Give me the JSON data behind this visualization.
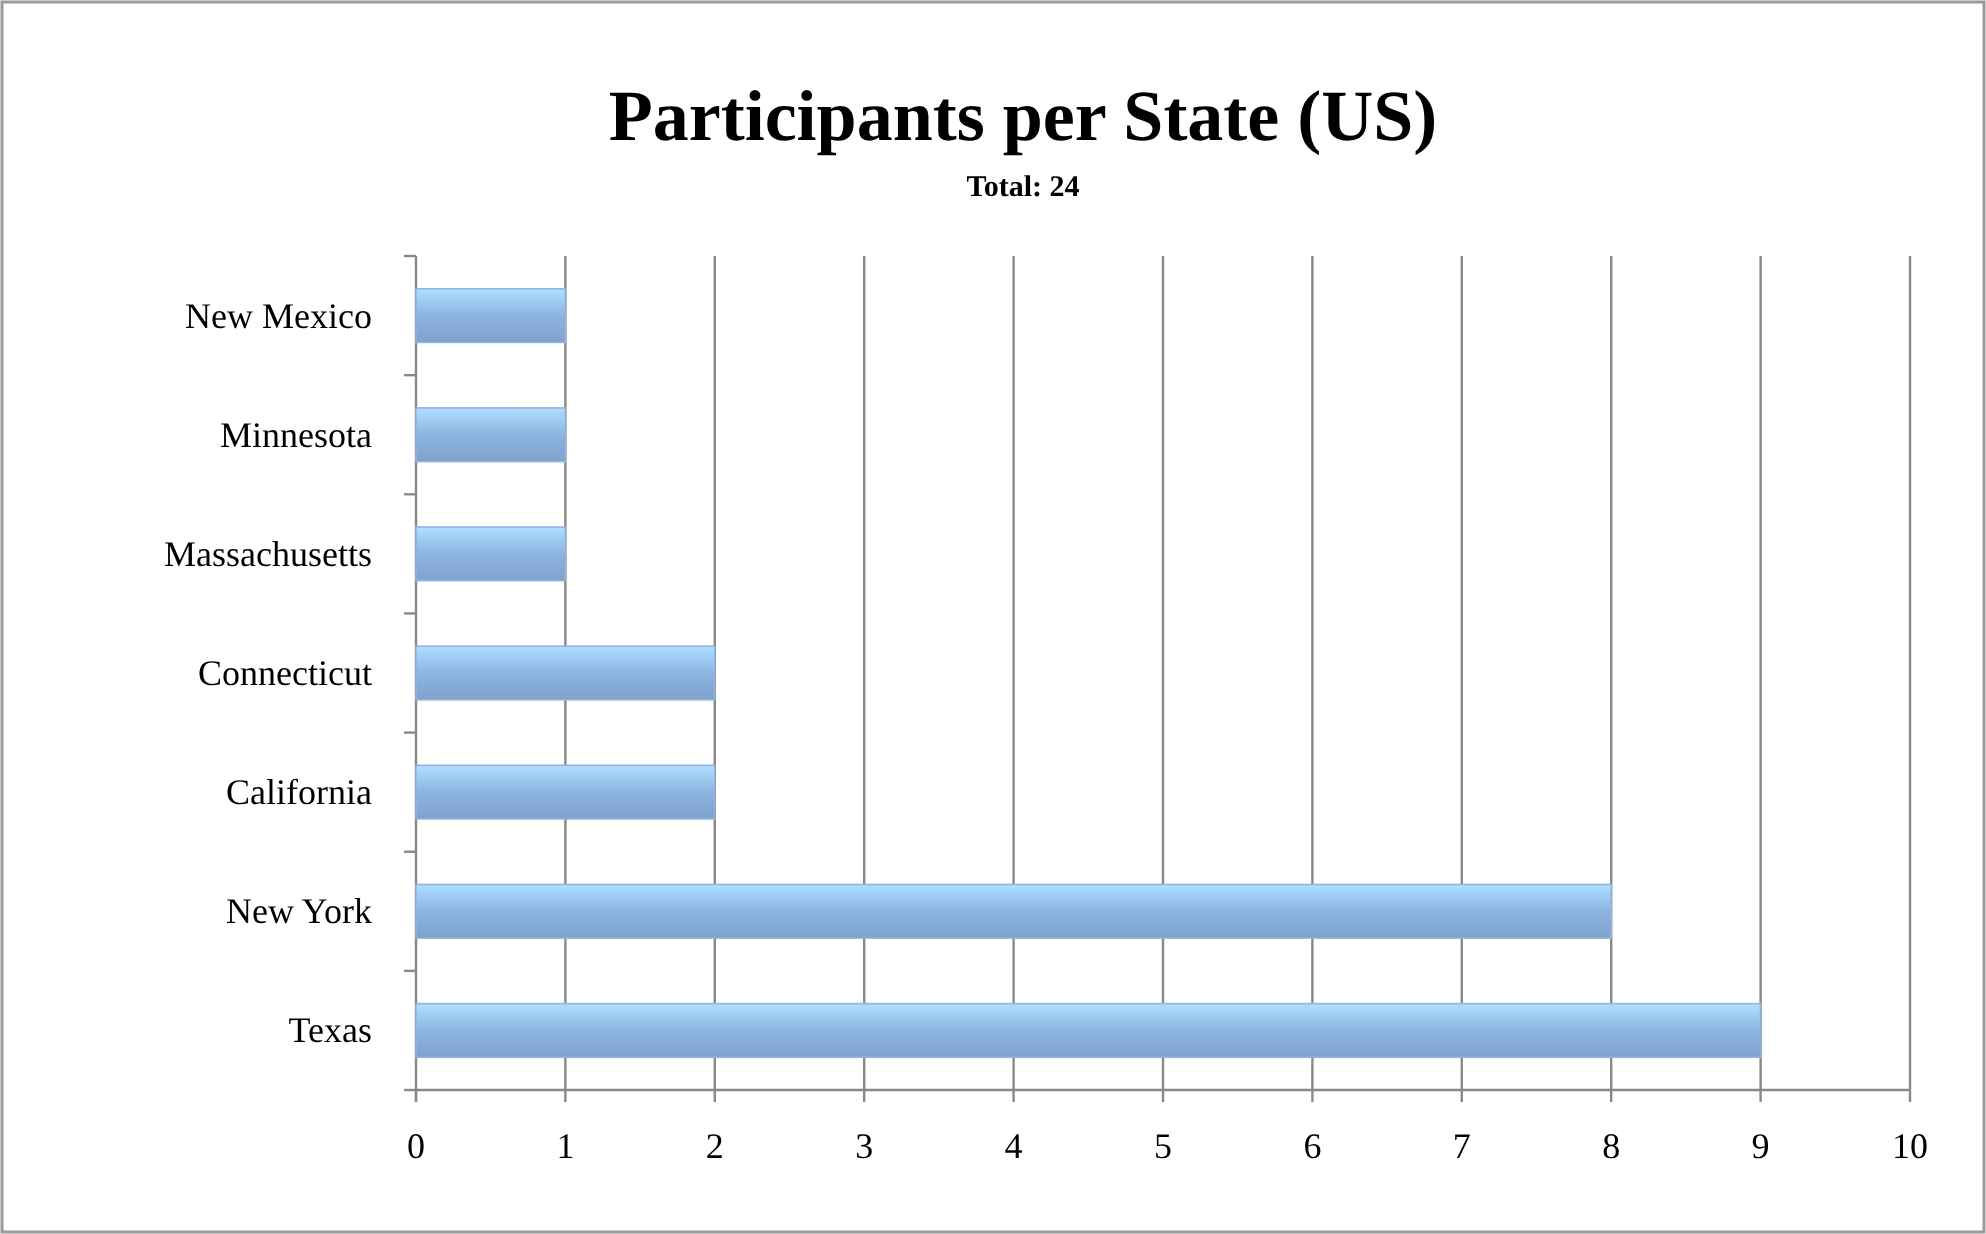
{
  "chart_data": {
    "type": "bar",
    "orientation": "horizontal",
    "title": "Participants per State (US)",
    "subtitle": "Total: 24",
    "categories": [
      "New Mexico",
      "Minnesota",
      "Massachusetts",
      "Connecticut",
      "California",
      "New York",
      "Texas"
    ],
    "values": [
      1,
      1,
      1,
      2,
      2,
      8,
      9
    ],
    "color": "#8db4e2",
    "xlim": [
      0,
      10
    ],
    "xticks": [
      0,
      1,
      2,
      3,
      4,
      5,
      6,
      7,
      8,
      9,
      10
    ],
    "grid": "x"
  }
}
